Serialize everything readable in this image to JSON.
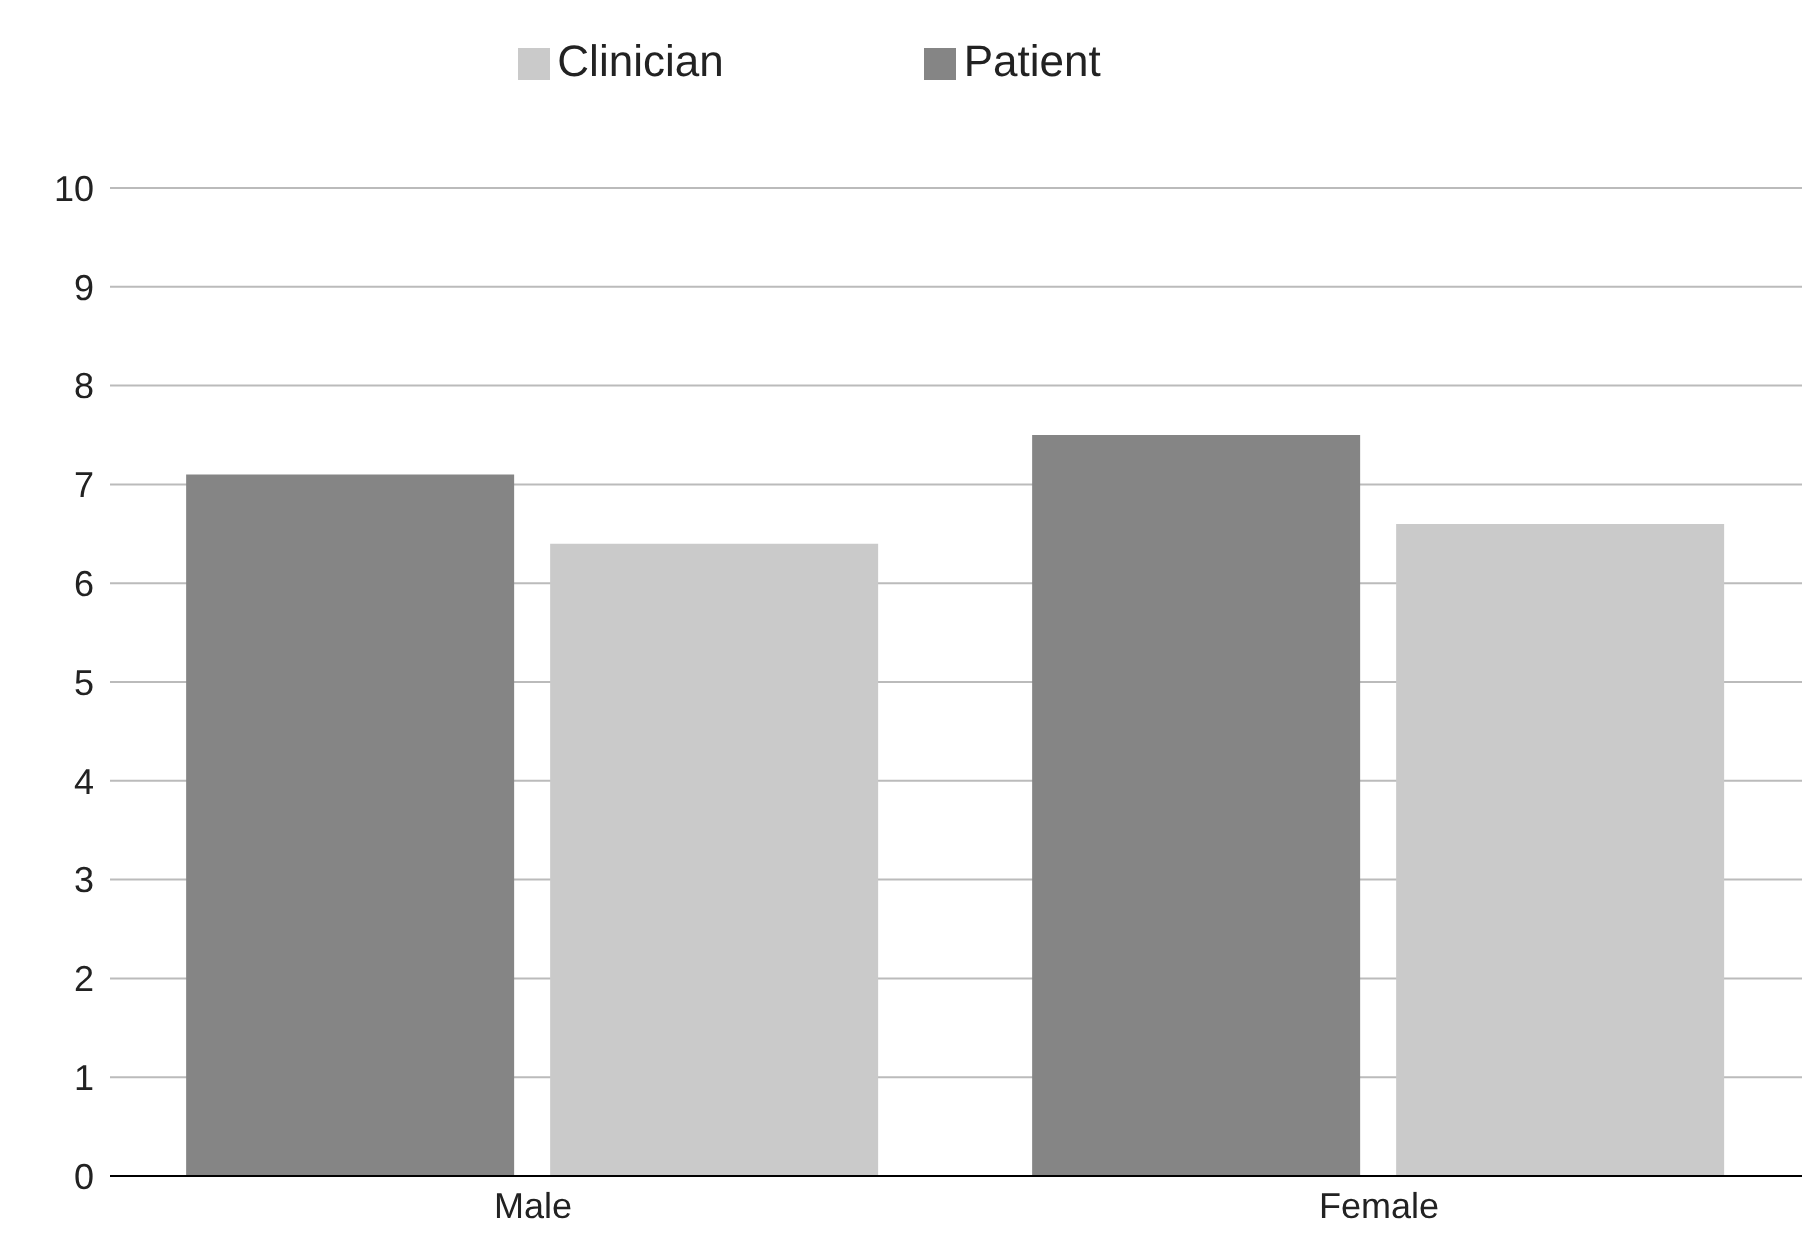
{
  "chart_data": {
    "type": "bar",
    "categories": [
      "Male",
      "Female"
    ],
    "series": [
      {
        "name": "Patient",
        "color": "#858585",
        "values": [
          7.1,
          7.5
        ]
      },
      {
        "name": "Clinician",
        "color": "#cacaca",
        "values": [
          6.4,
          6.6
        ]
      }
    ],
    "ylim": [
      0,
      10
    ],
    "yticks": [
      0,
      1,
      2,
      3,
      4,
      5,
      6,
      7,
      8,
      9,
      10
    ],
    "grid": "y",
    "legend": "top"
  }
}
